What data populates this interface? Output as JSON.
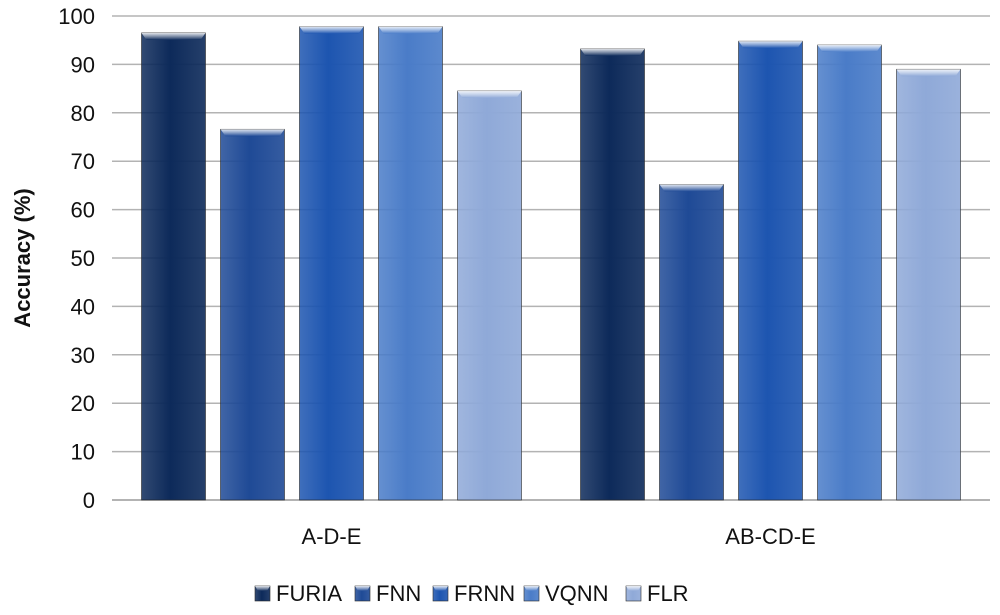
{
  "chart_data": {
    "type": "bar",
    "categories": [
      "A-D-E",
      "AB-CD-E"
    ],
    "series": [
      {
        "name": "FURIA",
        "values": [
          96.5,
          93.2
        ],
        "color": "#0d2a5a"
      },
      {
        "name": "FNN",
        "values": [
          76.6,
          65.2
        ],
        "color": "#1f4a96"
      },
      {
        "name": "FRNN",
        "values": [
          97.8,
          94.8
        ],
        "color": "#1d55b0"
      },
      {
        "name": "VQNN",
        "values": [
          97.8,
          94.0
        ],
        "color": "#4a7cc8"
      },
      {
        "name": "FLR",
        "values": [
          84.5,
          89.0
        ],
        "color": "#8fa9d8"
      }
    ],
    "ylabel": "Accuracy (%)",
    "xlabel": "",
    "title": "",
    "ylim": [
      0,
      100
    ],
    "yticks": [
      0,
      10,
      20,
      30,
      40,
      50,
      60,
      70,
      80,
      90,
      100
    ],
    "grid": true,
    "legend": "bottom"
  }
}
